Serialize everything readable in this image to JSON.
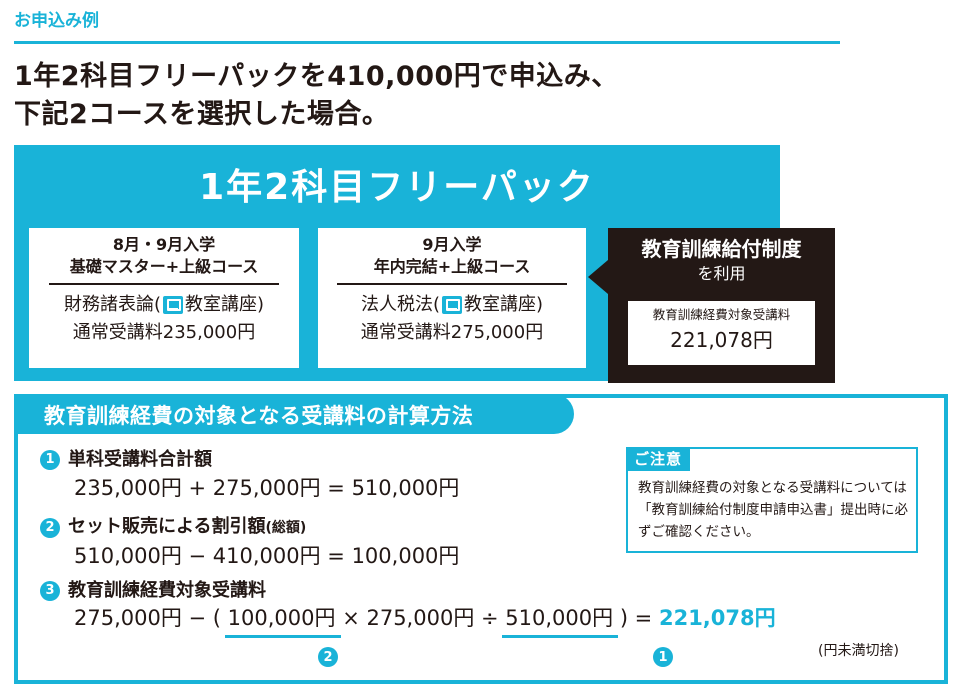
{
  "section_label": "お申込み例",
  "headline": {
    "line1": "1年2科目フリーパックを410,000円で申込み、",
    "line2": "下記2コースを選択した場合。"
  },
  "pack": {
    "title": "1年2科目フリーパック",
    "courses": [
      {
        "line1": "8月・9月入学",
        "line2": "基礎マスター+上級コース",
        "subject_prefix": "財務諸表論(",
        "subject_suffix": "教室講座)",
        "fee": "通常受講料235,000円"
      },
      {
        "line1": "9月入学",
        "line2": "年内完結+上級コース",
        "subject_prefix": "法人税法(",
        "subject_suffix": "教室講座)",
        "fee": "通常受講料275,000円"
      }
    ],
    "subsidy": {
      "title": "教育訓練給付制度",
      "sub": "を利用",
      "label": "教育訓練経費対象受講料",
      "value": "221,078円"
    }
  },
  "calc": {
    "title": "教育訓練経費の対象となる受講料の計算方法",
    "steps": [
      {
        "num": "1",
        "title": "単科受講料合計額",
        "formula": "235,000円 + 275,000円 = 510,000円"
      },
      {
        "num": "2",
        "title": "セット販売による割引額",
        "title_small": "(総額)",
        "formula": "510,000円 − 410,000円 = 100,000円"
      },
      {
        "num": "3",
        "title": "教育訓練経費対象受講料"
      }
    ],
    "final": {
      "lead": "275,000円 − (",
      "ref2": "100,000円",
      "middle": "× 275,000円 ÷",
      "ref1": "510,000円",
      "close": ") =",
      "result": "221,078円",
      "ref2_num": "2",
      "ref1_num": "1",
      "rounding": "(円未満切捨)"
    }
  },
  "note": {
    "tag": "ご注意",
    "text": "教育訓練経費の対象となる受講料については「教育訓練給付制度申請申込書」提出時に必ずご確認ください。"
  },
  "colors": {
    "accent": "#19b3d8",
    "dark": "#231815"
  }
}
